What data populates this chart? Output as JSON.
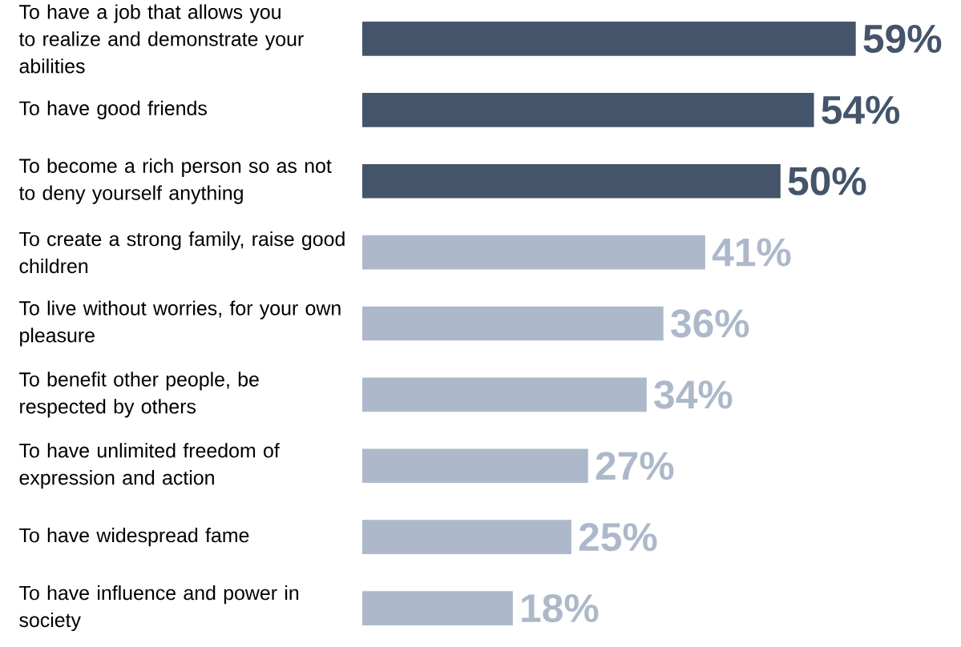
{
  "chart_data": {
    "type": "bar",
    "orientation": "horizontal",
    "categories": [
      "To have a job that allows you to realize and demonstrate your abilities",
      "To have good friends",
      "To become a rich person so as not to deny yourself anything",
      "To create a strong family, raise good children",
      "To live without worries, for your own pleasure",
      "To benefit other people, be respected by others",
      "To have unlimited freedom of expression and action",
      "To have widespread fame",
      "To have influence and power in society"
    ],
    "values": [
      59,
      54,
      50,
      41,
      36,
      34,
      27,
      25,
      18
    ],
    "value_labels": [
      "59%",
      "54%",
      "50%",
      "41%",
      "36%",
      "34%",
      "27%",
      "25%",
      "18%"
    ],
    "colors": [
      "#44546a",
      "#44546a",
      "#44546a",
      "#adb9ca",
      "#adb9ca",
      "#adb9ca",
      "#adb9ca",
      "#adb9ca",
      "#adb9ca"
    ]
  }
}
